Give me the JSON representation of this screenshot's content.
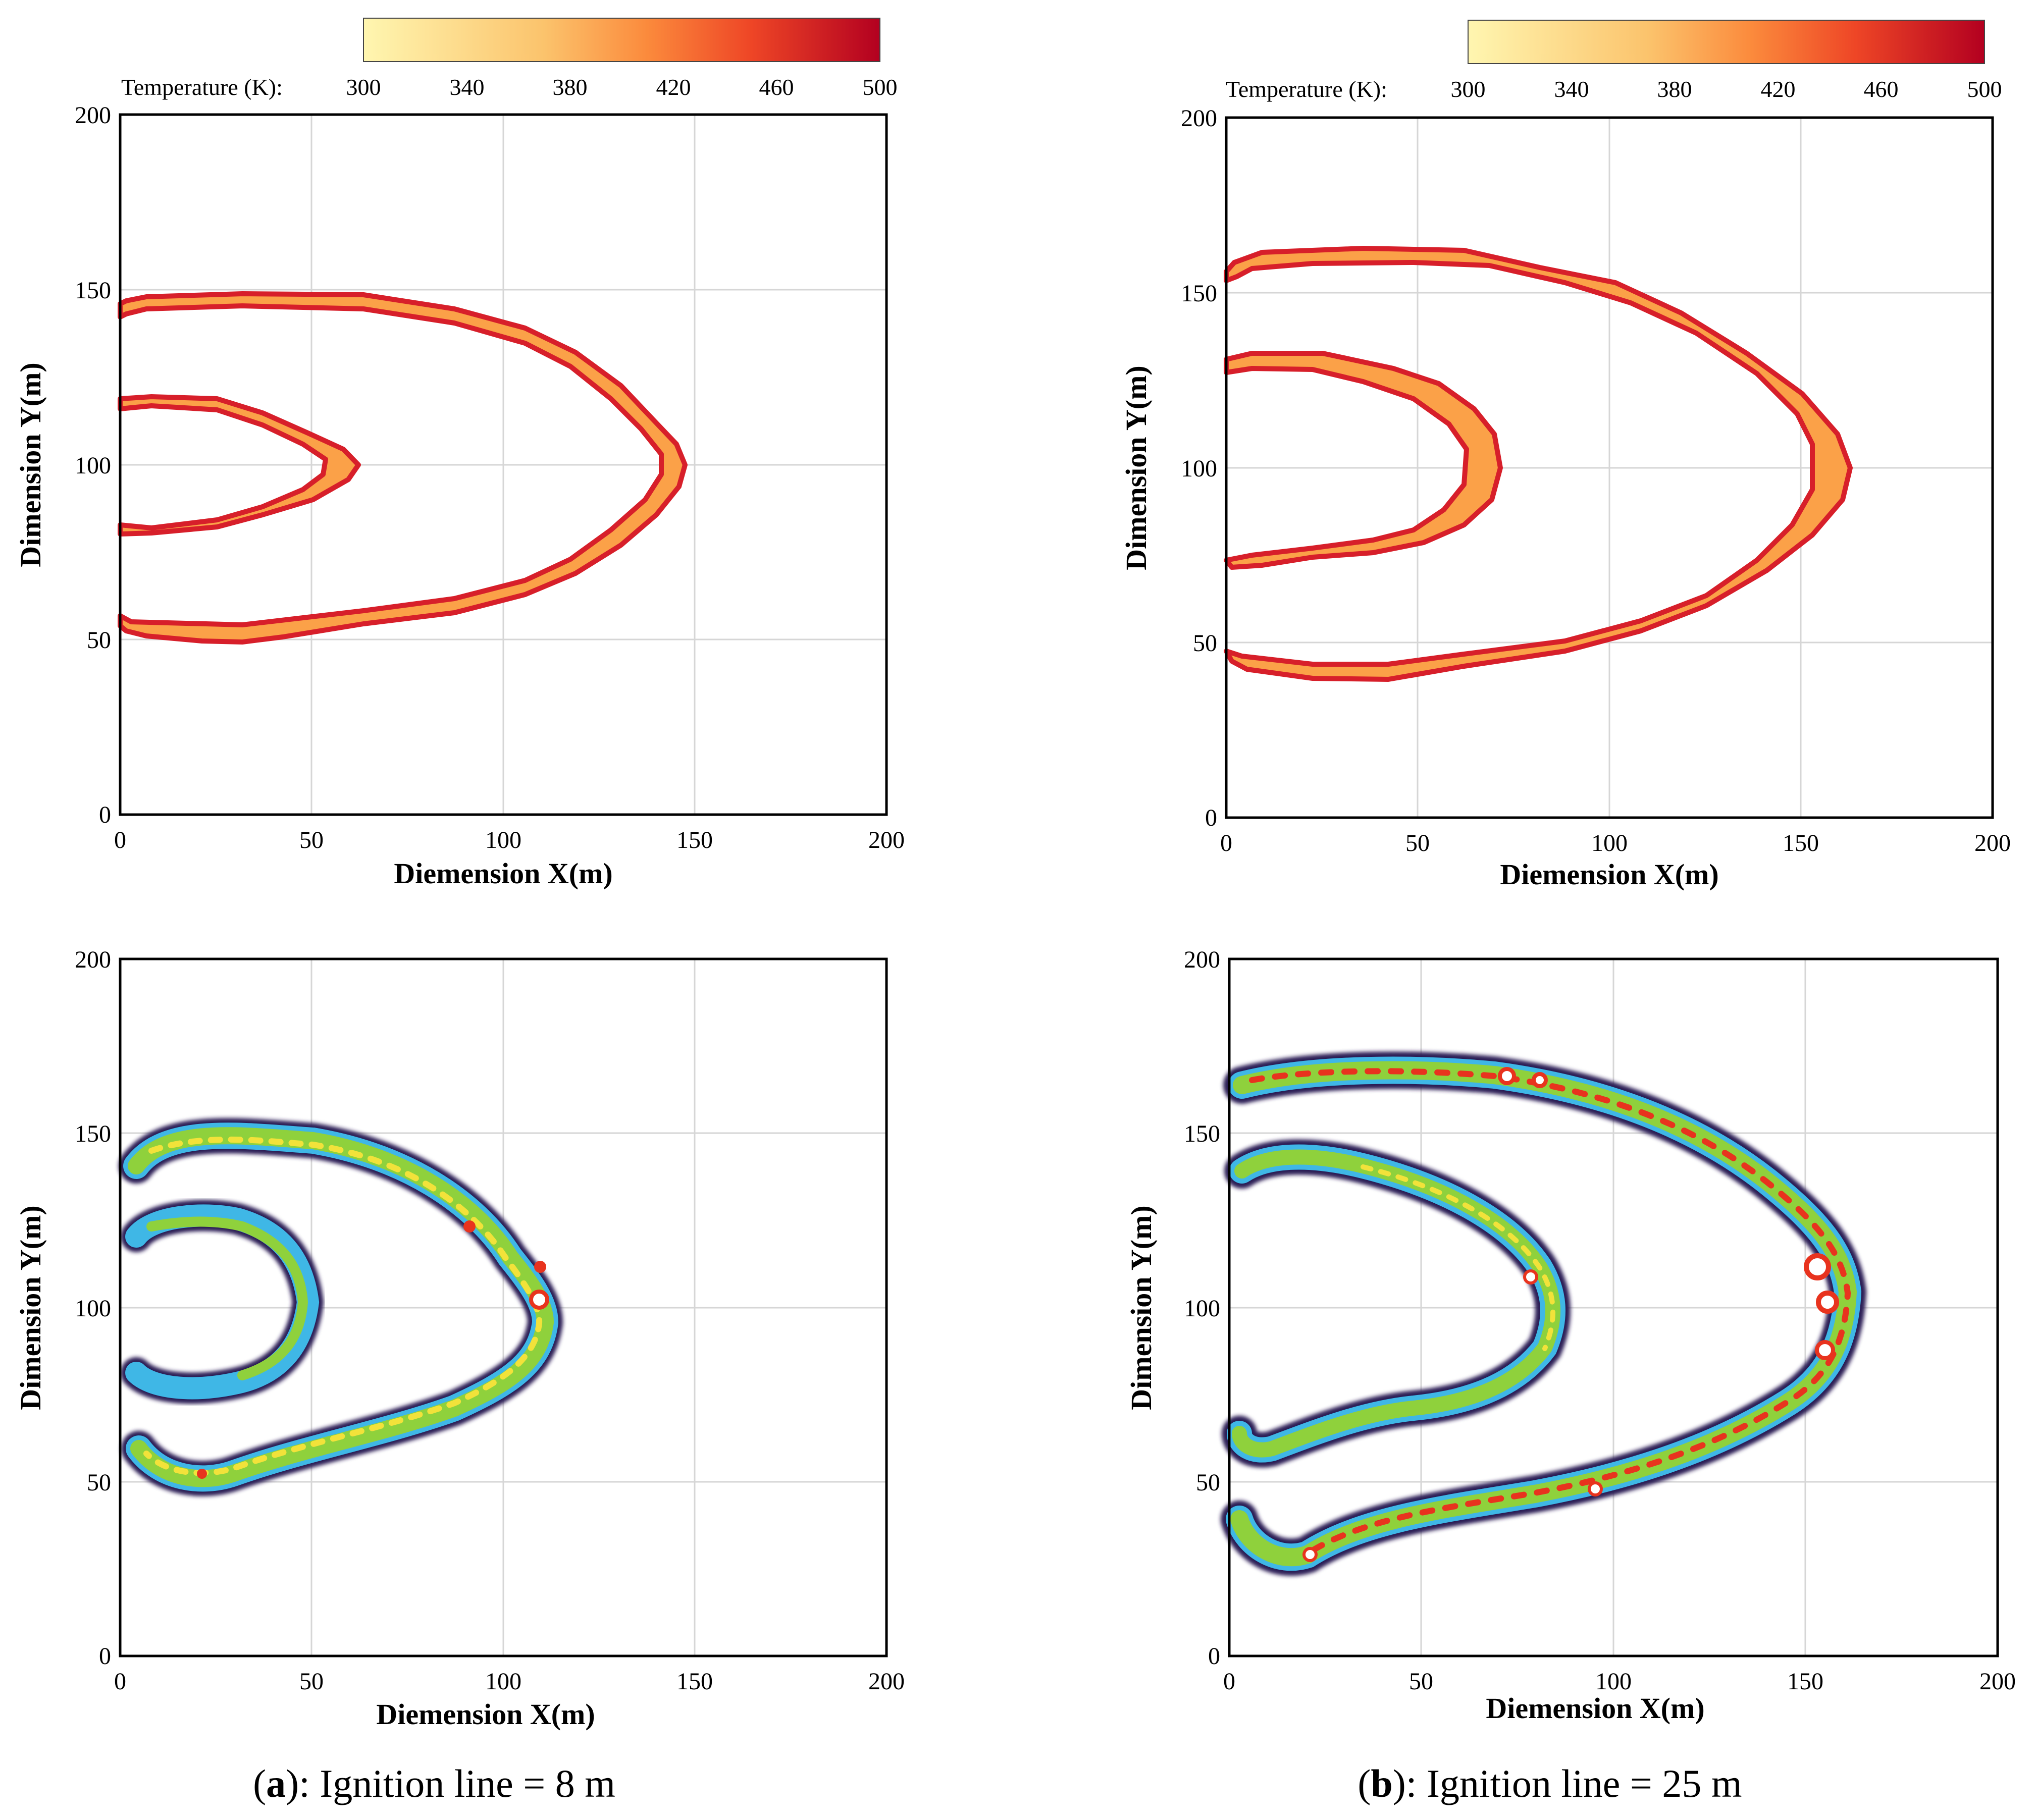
{
  "chart_data": [
    {
      "id": "a-top",
      "type": "heatmap",
      "title": "",
      "xlabel": "Diemension X(m)",
      "ylabel": "Dimension Y(m)",
      "xlim": [
        0,
        200
      ],
      "ylim": [
        0,
        200
      ],
      "xticks": [
        0,
        50,
        100,
        150,
        200
      ],
      "yticks": [
        0,
        50,
        100,
        150,
        200
      ],
      "grid": true,
      "colorbar": {
        "label": "Temperature (K):",
        "ticks": [
          300,
          340,
          380,
          420,
          460,
          500
        ],
        "range": [
          300,
          500
        ],
        "placement": "top"
      },
      "fronts": [
        {
          "name": "outer front",
          "x_tip": 147,
          "y_top": 147,
          "y_bottom": 52,
          "max_temp": 500,
          "min_temp": 380
        },
        {
          "name": "inner front",
          "x_tip": 62,
          "y_top": 118,
          "y_bottom": 82,
          "max_temp": 500,
          "min_temp": 380
        }
      ]
    },
    {
      "id": "b-top",
      "type": "heatmap",
      "title": "",
      "xlabel": "Diemension X(m)",
      "ylabel": "Dimension Y(m)",
      "xlim": [
        0,
        200
      ],
      "ylim": [
        0,
        200
      ],
      "xticks": [
        0,
        50,
        100,
        150,
        200
      ],
      "yticks": [
        0,
        50,
        100,
        150,
        200
      ],
      "grid": true,
      "colorbar": {
        "label": "Temperature (K):",
        "ticks": [
          300,
          340,
          380,
          420,
          460,
          500
        ],
        "range": [
          300,
          500
        ],
        "placement": "top"
      },
      "fronts": [
        {
          "name": "outer front",
          "x_tip": 162,
          "y_top": 160,
          "y_bottom": 41,
          "max_temp": 500,
          "min_temp": 380
        },
        {
          "name": "inner front",
          "x_tip": 73,
          "y_top": 130,
          "y_bottom": 72,
          "max_temp": 500,
          "min_temp": 380
        }
      ]
    },
    {
      "id": "a-bottom",
      "type": "heatmap",
      "title": "",
      "xlabel": "Diemension X(m)",
      "ylabel": "Dimension Y(m)",
      "xlim": [
        0,
        200
      ],
      "ylim": [
        0,
        200
      ],
      "xticks": [
        0,
        50,
        100,
        150,
        200
      ],
      "yticks": [
        0,
        50,
        100,
        150,
        200
      ],
      "grid": true,
      "fronts": [
        {
          "name": "outer front",
          "x_tip": 112,
          "y_top": 149,
          "y_bottom": 47
        },
        {
          "name": "inner front",
          "x_tip": 48,
          "y_top": 124,
          "y_bottom": 79
        }
      ]
    },
    {
      "id": "b-bottom",
      "type": "heatmap",
      "title": "",
      "xlabel": "Diemension X(m)",
      "ylabel": "Dimension Y(m)",
      "xlim": [
        0,
        200
      ],
      "ylim": [
        0,
        200
      ],
      "xticks": [
        0,
        50,
        100,
        150,
        200
      ],
      "yticks": [
        0,
        50,
        100,
        150,
        200
      ],
      "grid": true,
      "fronts": [
        {
          "name": "outer front",
          "x_tip": 160,
          "y_top": 169,
          "y_bottom": 29
        },
        {
          "name": "inner front",
          "x_tip": 82,
          "y_top": 140,
          "y_bottom": 63
        }
      ]
    }
  ],
  "captions": [
    {
      "letter": "a",
      "text": "): Ignition line = 8 m"
    },
    {
      "letter": "b",
      "text": "): Ignition line = 25 m"
    }
  ],
  "colors": {
    "temp_low": "#fff6b0",
    "temp_mid": "#fba148",
    "temp_high": "#e8421f",
    "temp_max": "#b30020",
    "cfd_outline": "#2a1a55",
    "cfd_blue": "#3fb7e6",
    "cfd_green": "#8fd13c",
    "cfd_yellow": "#f2e23a",
    "cfd_red": "#e8331e"
  }
}
